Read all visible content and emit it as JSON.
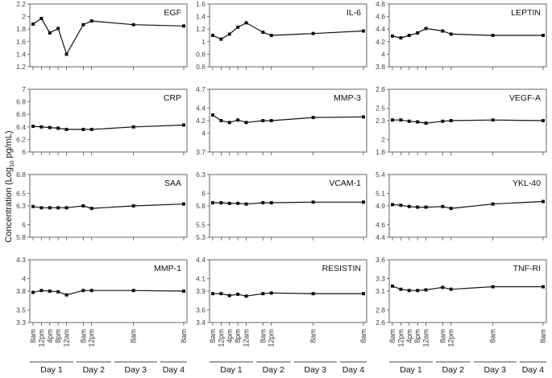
{
  "y_axis_label": "Concentration (Log10 pg/mL)",
  "y_axis_label_parts": {
    "main": "Concentration (Log",
    "sub": "10",
    "tail": " pg/mL)"
  },
  "x_time_labels": [
    "8am",
    "12pm",
    "4pm",
    "8pm",
    "12am",
    "8am",
    "12pm",
    "8am",
    "8am"
  ],
  "x_time_values": [
    0,
    4,
    8,
    12,
    16,
    24,
    28,
    48,
    72
  ],
  "day_labels": [
    "Day 1",
    "Day 2",
    "Day 3",
    "Day 4"
  ],
  "chart_data": [
    {
      "type": "line",
      "title": "EGF",
      "ylim": [
        1.2,
        2.2
      ],
      "yticks": [
        "1.2",
        "1.4",
        "1.6",
        "1.8",
        "2",
        "2.2"
      ],
      "x": [
        0,
        4,
        8,
        12,
        16,
        24,
        28,
        48,
        72
      ],
      "values": [
        1.88,
        1.97,
        1.74,
        1.81,
        1.4,
        1.87,
        1.93,
        1.87,
        1.85
      ]
    },
    {
      "type": "line",
      "title": "IL-6",
      "ylim": [
        0.6,
        1.6
      ],
      "yticks": [
        "0.6",
        "0.8",
        "1",
        "1.2",
        "1.4",
        "1.6"
      ],
      "x": [
        0,
        4,
        8,
        12,
        16,
        24,
        28,
        48,
        72
      ],
      "values": [
        1.1,
        1.04,
        1.12,
        1.23,
        1.3,
        1.15,
        1.1,
        1.13,
        1.17
      ]
    },
    {
      "type": "line",
      "title": "LEPTIN",
      "ylim": [
        3.8,
        4.8
      ],
      "yticks": [
        "3.8",
        "4",
        "4.2",
        "4.4",
        "4.6",
        "4.8"
      ],
      "x": [
        0,
        4,
        8,
        12,
        16,
        24,
        28,
        48,
        72
      ],
      "values": [
        4.29,
        4.26,
        4.3,
        4.34,
        4.41,
        4.37,
        4.32,
        4.3,
        4.3
      ]
    },
    {
      "type": "line",
      "title": "CRP",
      "ylim": [
        6,
        7
      ],
      "yticks": [
        "6",
        "6.2",
        "6.4",
        "6.6",
        "6.8",
        "7"
      ],
      "x": [
        0,
        4,
        8,
        12,
        16,
        24,
        28,
        48,
        72
      ],
      "values": [
        6.41,
        6.4,
        6.39,
        6.38,
        6.36,
        6.36,
        6.36,
        6.4,
        6.43
      ]
    },
    {
      "type": "line",
      "title": "MMP-3",
      "ylim": [
        3.7,
        4.7
      ],
      "yticks": [
        "3.7",
        "4",
        "4.2",
        "4.4",
        "4.7"
      ],
      "x": [
        0,
        4,
        8,
        12,
        16,
        24,
        28,
        48,
        72
      ],
      "values": [
        4.29,
        4.2,
        4.17,
        4.21,
        4.17,
        4.2,
        4.2,
        4.25,
        4.26
      ]
    },
    {
      "type": "line",
      "title": "VEGF-A",
      "ylim": [
        1.8,
        2.8
      ],
      "yticks": [
        "1.8",
        "2",
        "2.3",
        "2.5",
        "2.8"
      ],
      "x": [
        0,
        4,
        8,
        12,
        16,
        24,
        28,
        48,
        72
      ],
      "values": [
        2.31,
        2.31,
        2.29,
        2.28,
        2.26,
        2.29,
        2.3,
        2.31,
        2.3
      ]
    },
    {
      "type": "line",
      "title": "SAA",
      "ylim": [
        5.8,
        6.8
      ],
      "yticks": [
        "5.8",
        "6",
        "6.3",
        "6.5",
        "6.8"
      ],
      "x": [
        0,
        4,
        8,
        12,
        16,
        24,
        28,
        48,
        72
      ],
      "values": [
        6.29,
        6.27,
        6.27,
        6.27,
        6.27,
        6.3,
        6.26,
        6.3,
        6.33
      ]
    },
    {
      "type": "line",
      "title": "VCAM-1",
      "ylim": [
        5.3,
        6.3
      ],
      "yticks": [
        "5.3",
        "5.5",
        "5.8",
        "6",
        "6.3"
      ],
      "x": [
        0,
        4,
        8,
        12,
        16,
        24,
        28,
        48,
        72
      ],
      "values": [
        5.85,
        5.85,
        5.84,
        5.84,
        5.83,
        5.85,
        5.85,
        5.86,
        5.86
      ]
    },
    {
      "type": "line",
      "title": "YKL-40",
      "ylim": [
        4.4,
        5.4
      ],
      "yticks": [
        "4.4",
        "4.6",
        "4.9",
        "5.1",
        "5.4"
      ],
      "x": [
        0,
        4,
        8,
        12,
        16,
        24,
        28,
        48,
        72
      ],
      "values": [
        4.92,
        4.91,
        4.89,
        4.88,
        4.88,
        4.89,
        4.86,
        4.93,
        4.97
      ]
    },
    {
      "type": "line",
      "title": "MMP-1",
      "ylim": [
        3.3,
        4.3
      ],
      "yticks": [
        "3.3",
        "3.5",
        "3.8",
        "4",
        "4.3"
      ],
      "x": [
        0,
        4,
        8,
        12,
        16,
        24,
        28,
        48,
        72
      ],
      "values": [
        3.78,
        3.81,
        3.8,
        3.79,
        3.74,
        3.81,
        3.81,
        3.81,
        3.8
      ]
    },
    {
      "type": "line",
      "title": "RESISTIN",
      "ylim": [
        3.4,
        4.4
      ],
      "yticks": [
        "3.4",
        "3.6",
        "3.9",
        "4.1",
        "4.4"
      ],
      "x": [
        0,
        4,
        8,
        12,
        16,
        24,
        28,
        48,
        72
      ],
      "values": [
        3.86,
        3.86,
        3.83,
        3.85,
        3.82,
        3.86,
        3.87,
        3.86,
        3.86
      ]
    },
    {
      "type": "line",
      "title": "TNF-RI",
      "ylim": [
        2.6,
        3.6
      ],
      "yticks": [
        "2.6",
        "2.8",
        "3.1",
        "3.3",
        "3.6"
      ],
      "x": [
        0,
        4,
        8,
        12,
        16,
        24,
        28,
        48,
        72
      ],
      "values": [
        3.18,
        3.13,
        3.11,
        3.11,
        3.12,
        3.16,
        3.13,
        3.17,
        3.17
      ]
    }
  ]
}
